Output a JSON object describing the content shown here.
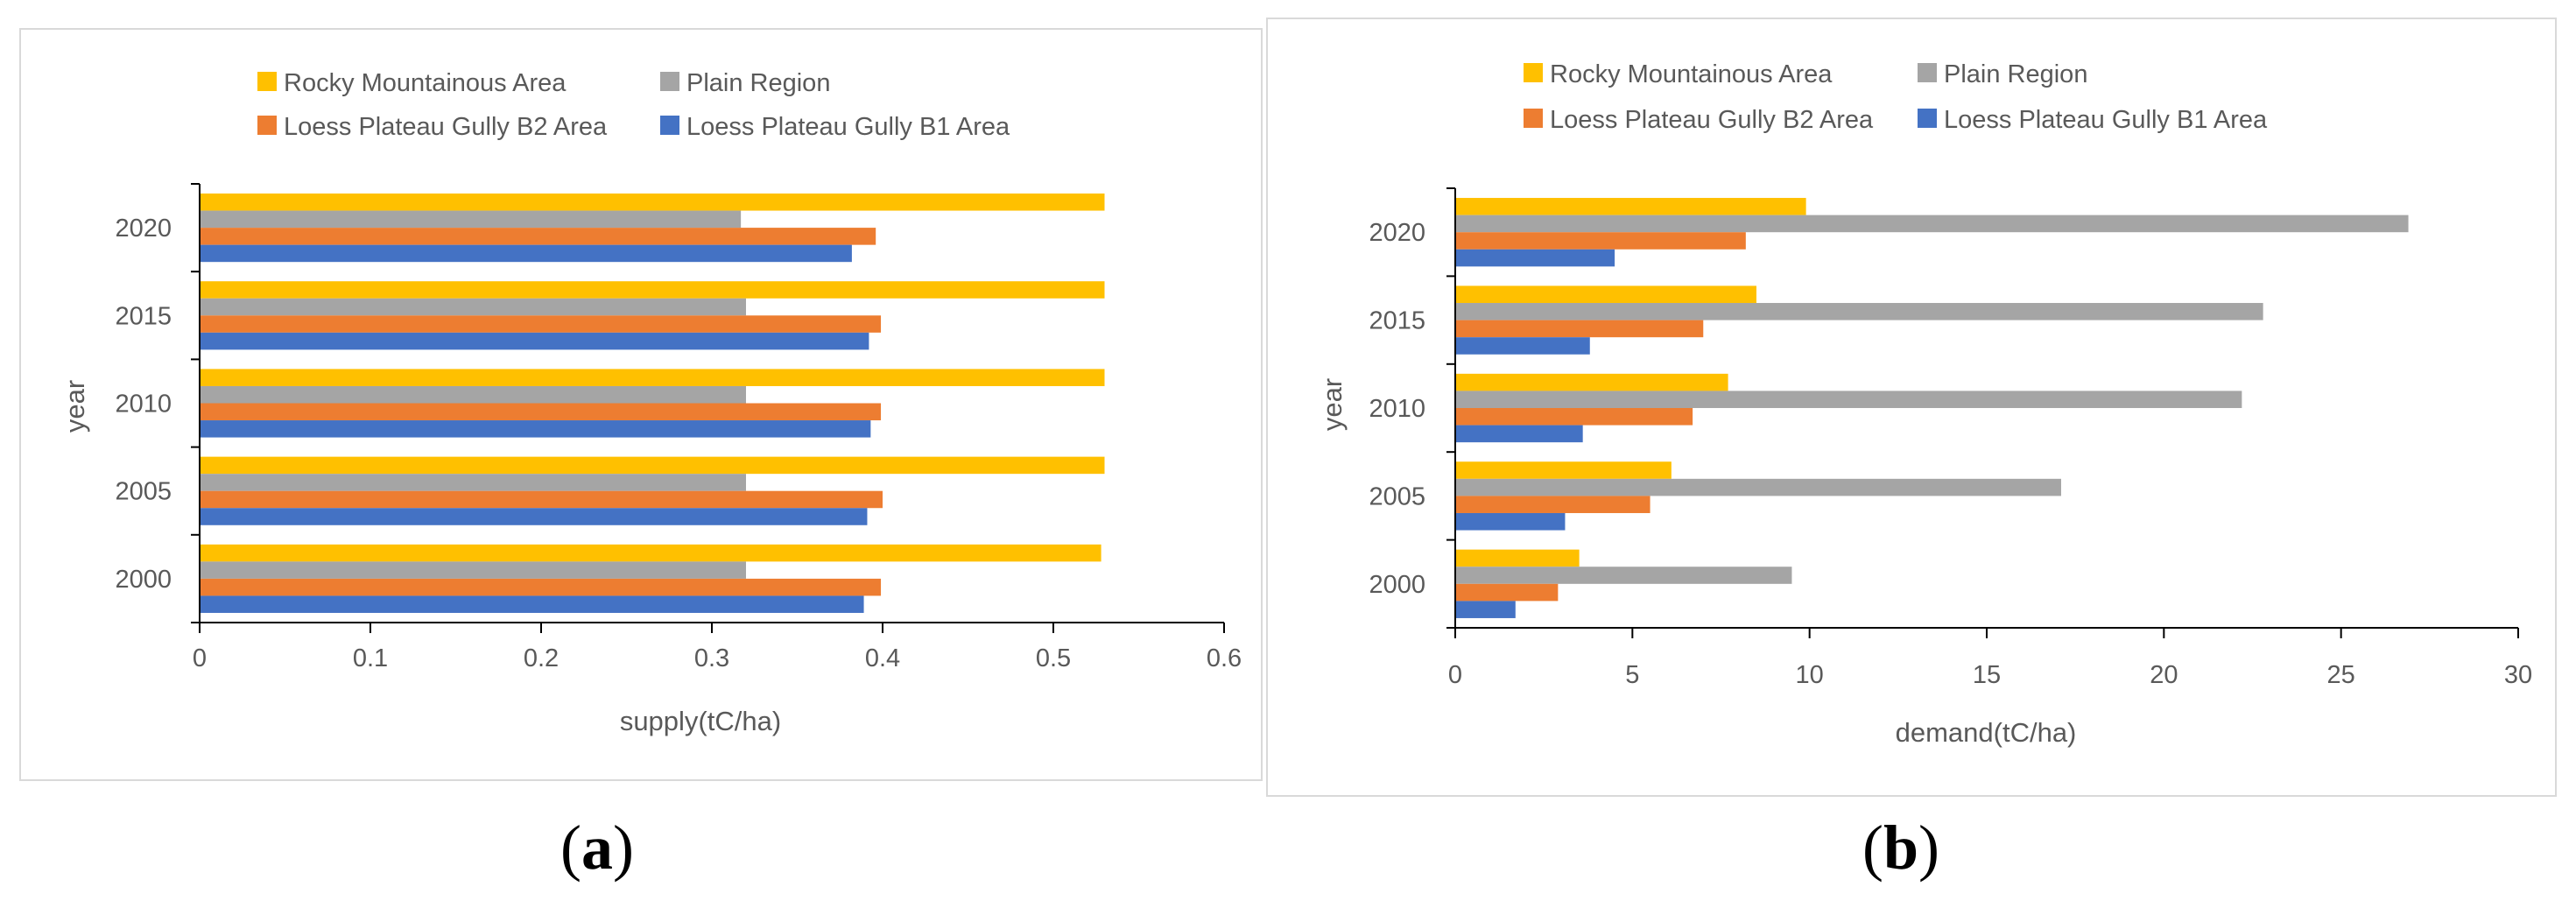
{
  "colors": {
    "rocky": "#FFC000",
    "plain": "#A5A5A5",
    "b2": "#ED7D31",
    "b1": "#4472C4",
    "axis": "#000000",
    "text": "#595959"
  },
  "chart_data": [
    {
      "id": "a",
      "type": "bar",
      "orientation": "horizontal",
      "panel_label": {
        "open": "(",
        "letter": "a",
        "close": ")"
      },
      "xlabel": "supply(tC/ha)",
      "ylabel": "year",
      "xlim": [
        0,
        0.6
      ],
      "xticks": [
        "0",
        "0.1",
        "0.2",
        "0.3",
        "0.4",
        "0.5",
        "0.6"
      ],
      "categories": [
        "2000",
        "2005",
        "2010",
        "2015",
        "2020"
      ],
      "legend_position": "top",
      "series": [
        {
          "key": "rocky",
          "name": "Rocky Mountainous Area",
          "values": [
            0.528,
            0.53,
            0.53,
            0.53,
            0.53
          ]
        },
        {
          "key": "plain",
          "name": "Plain Region",
          "values": [
            0.32,
            0.32,
            0.32,
            0.32,
            0.317
          ]
        },
        {
          "key": "b2",
          "name": "Loess Plateau Gully B2 Area",
          "values": [
            0.399,
            0.4,
            0.399,
            0.399,
            0.396
          ]
        },
        {
          "key": "b1",
          "name": "Loess Plateau Gully B1 Area",
          "values": [
            0.389,
            0.391,
            0.393,
            0.392,
            0.382
          ]
        }
      ]
    },
    {
      "id": "b",
      "type": "bar",
      "orientation": "horizontal",
      "panel_label": {
        "open": "(",
        "letter": "b",
        "close": ")"
      },
      "xlabel": "demand(tC/ha)",
      "ylabel": "year",
      "xlim": [
        0,
        30
      ],
      "xticks": [
        "0",
        "5",
        "10",
        "15",
        "20",
        "25",
        "30"
      ],
      "categories": [
        "2000",
        "2005",
        "2010",
        "2015",
        "2020"
      ],
      "legend_position": "top",
      "series": [
        {
          "key": "rocky",
          "name": "Rocky Mountainous Area",
          "values": [
            3.5,
            6.1,
            7.7,
            8.5,
            9.9
          ]
        },
        {
          "key": "plain",
          "name": "Plain Region",
          "values": [
            9.5,
            17.1,
            22.2,
            22.8,
            26.9
          ]
        },
        {
          "key": "b2",
          "name": "Loess Plateau Gully B2 Area",
          "values": [
            2.9,
            5.5,
            6.7,
            7.0,
            8.2
          ]
        },
        {
          "key": "b1",
          "name": "Loess Plateau Gully B1 Area",
          "values": [
            1.7,
            3.1,
            3.6,
            3.8,
            4.5
          ]
        }
      ]
    }
  ]
}
